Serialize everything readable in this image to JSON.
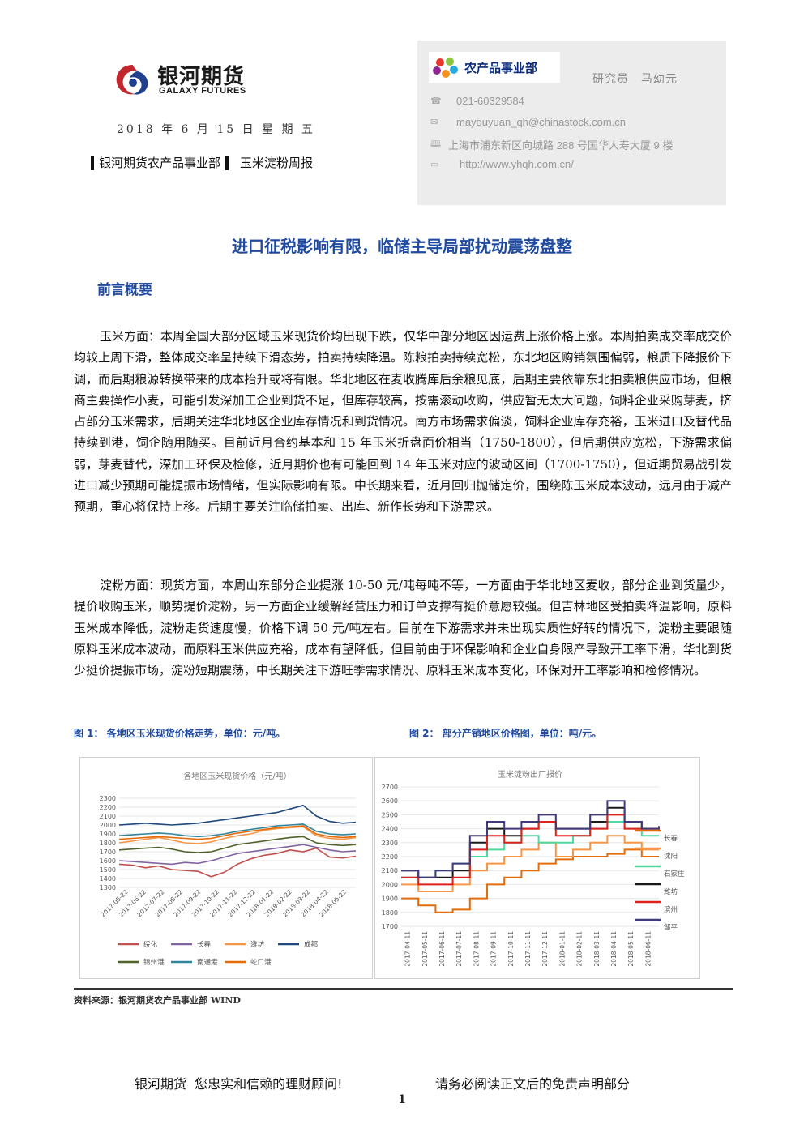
{
  "header": {
    "logo_cn": "银河期货",
    "logo_en": "GALAXY FUTURES",
    "date": "2018 年 6 月 15 日 星 期 五",
    "dept": "银河期货农产品事业部",
    "report": "玉米淀粉周报",
    "dept_badge": "农产品事业部",
    "analyst": "研究员　马幼元",
    "phone": "021-60329584",
    "email": "mayouyuan_qh@chinastock.com.cn",
    "address": "上海市浦东新区向城路 288 号国华人寿大厦 9 楼",
    "website": "http://www.yhqh.com.cn/"
  },
  "title": "进口征税影响有限，临储主导局部扰动震荡盘整",
  "section": "前言概要",
  "paragraphs": {
    "corn": "玉米方面：本周全国大部分区域玉米现货价均出现下跌，仅华中部分地区因运费上涨价格上涨。本周拍卖成交率成交价均较上周下滑，整体成交率呈持续下滑态势，拍卖持续降温。陈粮拍卖持续宽松，东北地区购销氛围偏弱，粮质下降报价下调，而后期粮源转换带来的成本抬升或将有限。华北地区在麦收腾库后余粮见底，后期主要依靠东北拍卖粮供应市场，但粮商主要操作小麦，可能引发深加工企业到货不足，但库存较高，按需滚动收购，供应暂无太大问题，饲料企业采购芽麦，挤占部分玉米需求，后期关注华北地区企业库存情况和到货情况。南方市场需求偏淡，饲料企业库存充裕，玉米进口及替代品持续到港，饲企随用随买。目前近月合约基本和 15 年玉米折盘面价相当（1750-1800），但后期供应宽松，下游需求偏弱，芽麦替代，深加工环保及检修，近月期价也有可能回到 14 年玉米对应的波动区间（1700-1750），但近期贸易战引发进口减少预期可能提振市场情绪，但实际影响有限。中长期来看，近月回归抛储定价，围绕陈玉米成本波动，远月由于减产预期，重心将保持上移。后期主要关注临储拍卖、出库、新作长势和下游需求。",
    "starch": "淀粉方面：现货方面，本周山东部分企业提涨 10-50 元/吨每吨不等，一方面由于华北地区麦收，部分企业到货量少，提价收购玉米，顺势提价淀粉，另一方面企业缓解经营压力和订单支撑有挺价意愿较强。但吉林地区受拍卖降温影响，原料玉米成本降低，淀粉走货速度慢，价格下调 50 元/吨左右。目前在下游需求并未出现实质性好转的情况下，淀粉主要跟随原料玉米成本波动，而原料玉米供应充裕，成本有望降低，但目前由于环保影响和企业自身限产导致开工率下滑，华北到货少挺价提振市场，淀粉短期震荡，中长期关注下游旺季需求情况、原料玉米成本变化，环保对开工率影响和检修情况。"
  },
  "figures": {
    "fig1_caption": "图 1：  各地区玉米现货价格走势，单位：元/吨。",
    "fig2_caption": "图 2：  部分产销地区价格图，单位：吨/元。",
    "source": "资料来源：银河期货农产品事业部 WIND"
  },
  "chart_data": [
    {
      "type": "line",
      "title": "各地区玉米现货价格（元/吨）",
      "ylim": [
        1300,
        2300
      ],
      "yticks": [
        1300,
        1400,
        1500,
        1600,
        1700,
        1800,
        1900,
        2000,
        2100,
        2200,
        2300
      ],
      "x_labels": [
        "2017-05-22",
        "2017-06-22",
        "2017-07-22",
        "2017-08-22",
        "2017-09-22",
        "2017-10-22",
        "2017-11-22",
        "2017-12-22",
        "2018-01-22",
        "2018-02-22",
        "2018-03-22",
        "2018-04-22",
        "2018-05-22"
      ],
      "series": [
        {
          "name": "绥化",
          "color": "#c0504d",
          "values": [
            1560,
            1550,
            1520,
            1540,
            1500,
            1490,
            1480,
            1420,
            1470,
            1560,
            1620,
            1660,
            1680,
            1720,
            1700,
            1740,
            1640,
            1630,
            1650
          ]
        },
        {
          "name": "长春",
          "color": "#8064a2",
          "values": [
            1600,
            1590,
            1580,
            1570,
            1560,
            1580,
            1570,
            1600,
            1640,
            1680,
            1700,
            1720,
            1740,
            1760,
            1780,
            1750,
            1720,
            1700,
            1710
          ]
        },
        {
          "name": "潍坊",
          "color": "#f79646",
          "values": [
            1800,
            1820,
            1840,
            1860,
            1830,
            1800,
            1790,
            1810,
            1850,
            1880,
            1900,
            1940,
            1960,
            1970,
            1980,
            1880,
            1850,
            1840,
            1860
          ]
        },
        {
          "name": "成都",
          "color": "#1f497d",
          "values": [
            2000,
            2010,
            2020,
            2010,
            2000,
            2010,
            2020,
            2040,
            2060,
            2080,
            2100,
            2120,
            2140,
            2180,
            2220,
            2100,
            2040,
            2020,
            2030
          ]
        },
        {
          "name": "锦州港",
          "color": "#4f6228",
          "values": [
            1720,
            1730,
            1740,
            1750,
            1730,
            1700,
            1690,
            1700,
            1740,
            1780,
            1800,
            1820,
            1840,
            1860,
            1870,
            1800,
            1780,
            1770,
            1780
          ]
        },
        {
          "name": "南通港",
          "color": "#31859c",
          "values": [
            1880,
            1890,
            1900,
            1910,
            1900,
            1880,
            1870,
            1880,
            1900,
            1930,
            1950,
            1970,
            1990,
            2000,
            2010,
            1930,
            1900,
            1890,
            1900
          ]
        },
        {
          "name": "蛇口港",
          "color": "#e46c0a",
          "values": [
            1840,
            1850,
            1860,
            1870,
            1860,
            1850,
            1840,
            1850,
            1880,
            1910,
            1930,
            1950,
            1970,
            1980,
            1990,
            1900,
            1870,
            1860,
            1870
          ]
        }
      ]
    },
    {
      "type": "line",
      "title": "玉米淀粉出厂报价",
      "ylim": [
        1700,
        2700
      ],
      "yticks": [
        1700,
        1800,
        1900,
        2000,
        2100,
        2200,
        2300,
        2400,
        2500,
        2600,
        2700
      ],
      "x_labels": [
        "2017-04-11",
        "2017-05-11",
        "2017-06-11",
        "2017-07-11",
        "2017-08-11",
        "2017-09-11",
        "2017-10-11",
        "2017-11-11",
        "2017-12-11",
        "2018-01-11",
        "2018-02-11",
        "2018-03-11",
        "2018-04-11",
        "2018-05-11",
        "2018-06-11"
      ],
      "series": [
        {
          "name": "长春",
          "color": "#e46c0a",
          "values": [
            1900,
            1850,
            1800,
            1820,
            1900,
            2000,
            2050,
            2100,
            2150,
            2180,
            2200,
            2200,
            2220,
            2250,
            2200,
            2200
          ]
        },
        {
          "name": "沈阳",
          "color": "#f79646",
          "values": [
            2000,
            1950,
            1950,
            2000,
            2100,
            2150,
            2200,
            2250,
            2300,
            2200,
            2250,
            2300,
            2350,
            2300,
            2250,
            2250
          ]
        },
        {
          "name": "石家庄",
          "color": "#4fd8a0",
          "values": [
            2050,
            2050,
            2100,
            2150,
            2200,
            2250,
            2300,
            2350,
            2300,
            2300,
            2350,
            2400,
            2450,
            2400,
            2350,
            2350
          ]
        },
        {
          "name": "潍坊",
          "color": "#1a1a1a",
          "values": [
            2100,
            2050,
            2050,
            2100,
            2300,
            2400,
            2350,
            2400,
            2450,
            2400,
            2400,
            2450,
            2550,
            2450,
            2400,
            2400
          ]
        },
        {
          "name": "滨州",
          "color": "#e0201b",
          "values": [
            2050,
            2000,
            2000,
            2050,
            2250,
            2350,
            2300,
            2400,
            2450,
            2350,
            2350,
            2400,
            2500,
            2400,
            2400,
            2400
          ]
        },
        {
          "name": "邹平",
          "color": "#403a7a",
          "values": [
            2100,
            2050,
            2100,
            2150,
            2350,
            2450,
            2400,
            2450,
            2500,
            2400,
            2400,
            2500,
            2600,
            2450,
            2400,
            2420
          ]
        }
      ]
    }
  ]
}
